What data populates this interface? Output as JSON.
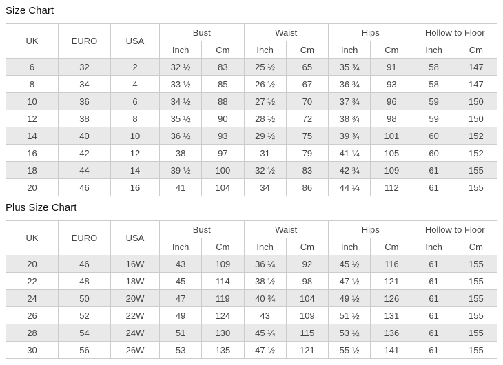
{
  "tables": [
    {
      "title": "Size Chart",
      "header": {
        "main_columns": [
          "UK",
          "EURO",
          "USA"
        ],
        "groups": [
          "Bust",
          "Waist",
          "Hips",
          "Hollow to Floor"
        ],
        "unit_columns": [
          "Inch",
          "Cm"
        ]
      },
      "rows": [
        [
          "6",
          "32",
          "2",
          "32 ½",
          "83",
          "25 ½",
          "65",
          "35 ¾",
          "91",
          "58",
          "147"
        ],
        [
          "8",
          "34",
          "4",
          "33 ½",
          "85",
          "26 ½",
          "67",
          "36 ¾",
          "93",
          "58",
          "147"
        ],
        [
          "10",
          "36",
          "6",
          "34 ½",
          "88",
          "27 ½",
          "70",
          "37 ¾",
          "96",
          "59",
          "150"
        ],
        [
          "12",
          "38",
          "8",
          "35 ½",
          "90",
          "28 ½",
          "72",
          "38 ¾",
          "98",
          "59",
          "150"
        ],
        [
          "14",
          "40",
          "10",
          "36 ½",
          "93",
          "29 ½",
          "75",
          "39 ¾",
          "101",
          "60",
          "152"
        ],
        [
          "16",
          "42",
          "12",
          "38",
          "97",
          "31",
          "79",
          "41 ¼",
          "105",
          "60",
          "152"
        ],
        [
          "18",
          "44",
          "14",
          "39 ½",
          "100",
          "32 ½",
          "83",
          "42 ¾",
          "109",
          "61",
          "155"
        ],
        [
          "20",
          "46",
          "16",
          "41",
          "104",
          "34",
          "86",
          "44 ¼",
          "112",
          "61",
          "155"
        ]
      ]
    },
    {
      "title": "Plus Size Chart",
      "header": {
        "main_columns": [
          "UK",
          "EURO",
          "USA"
        ],
        "groups": [
          "Bust",
          "Waist",
          "Hips",
          "Hollow to Floor"
        ],
        "unit_columns": [
          "Inch",
          "Cm"
        ]
      },
      "rows": [
        [
          "20",
          "46",
          "16W",
          "43",
          "109",
          "36 ¼",
          "92",
          "45 ½",
          "116",
          "61",
          "155"
        ],
        [
          "22",
          "48",
          "18W",
          "45",
          "114",
          "38 ½",
          "98",
          "47 ½",
          "121",
          "61",
          "155"
        ],
        [
          "24",
          "50",
          "20W",
          "47",
          "119",
          "40 ¾",
          "104",
          "49 ½",
          "126",
          "61",
          "155"
        ],
        [
          "26",
          "52",
          "22W",
          "49",
          "124",
          "43",
          "109",
          "51 ½",
          "131",
          "61",
          "155"
        ],
        [
          "28",
          "54",
          "24W",
          "51",
          "130",
          "45 ¼",
          "115",
          "53 ½",
          "136",
          "61",
          "155"
        ],
        [
          "30",
          "56",
          "26W",
          "53",
          "135",
          "47 ½",
          "121",
          "55 ½",
          "141",
          "61",
          "155"
        ]
      ]
    }
  ],
  "colors": {
    "row_stripe": "#e9e9e9",
    "border": "#cccccc",
    "cell_text": "#444444",
    "title_text": "#111111",
    "background": "#ffffff"
  }
}
